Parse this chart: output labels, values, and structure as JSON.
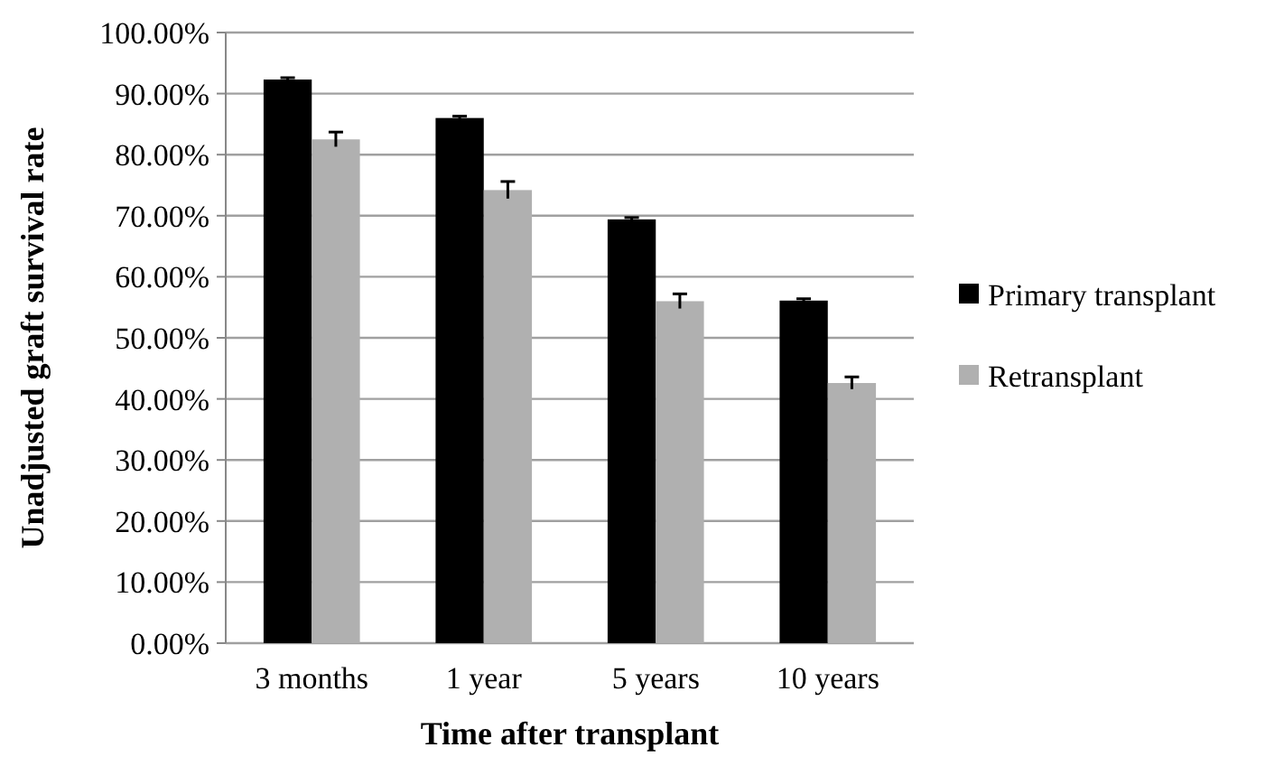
{
  "chart_data": {
    "type": "bar",
    "xlabel": "Time after transplant",
    "ylabel": "Unadjusted graft survival rate",
    "categories": [
      "3 months",
      "1 year",
      "5 years",
      "10 years"
    ],
    "series": [
      {
        "name": "Primary transplant",
        "color": "#000000",
        "values": [
          92.3,
          86.0,
          69.4,
          56.1
        ],
        "errors": [
          0.3,
          0.3,
          0.3,
          0.3
        ]
      },
      {
        "name": "Retransplant",
        "color": "#b0b0b0",
        "values": [
          82.5,
          74.2,
          56.0,
          42.6
        ],
        "errors": [
          1.2,
          1.4,
          1.2,
          1.0
        ]
      }
    ],
    "ylim": [
      0,
      100
    ],
    "yticks": [
      {
        "value": 0,
        "label": "0.00%"
      },
      {
        "value": 10,
        "label": "10.00%"
      },
      {
        "value": 20,
        "label": "20.00%"
      },
      {
        "value": 30,
        "label": "30.00%"
      },
      {
        "value": 40,
        "label": "40.00%"
      },
      {
        "value": 50,
        "label": "50.00%"
      },
      {
        "value": 60,
        "label": "60.00%"
      },
      {
        "value": 70,
        "label": "70.00%"
      },
      {
        "value": 80,
        "label": "80.00%"
      },
      {
        "value": 90,
        "label": "90.00%"
      },
      {
        "value": 100,
        "label": "100.00%"
      }
    ],
    "grid": "y",
    "legend": "right"
  }
}
